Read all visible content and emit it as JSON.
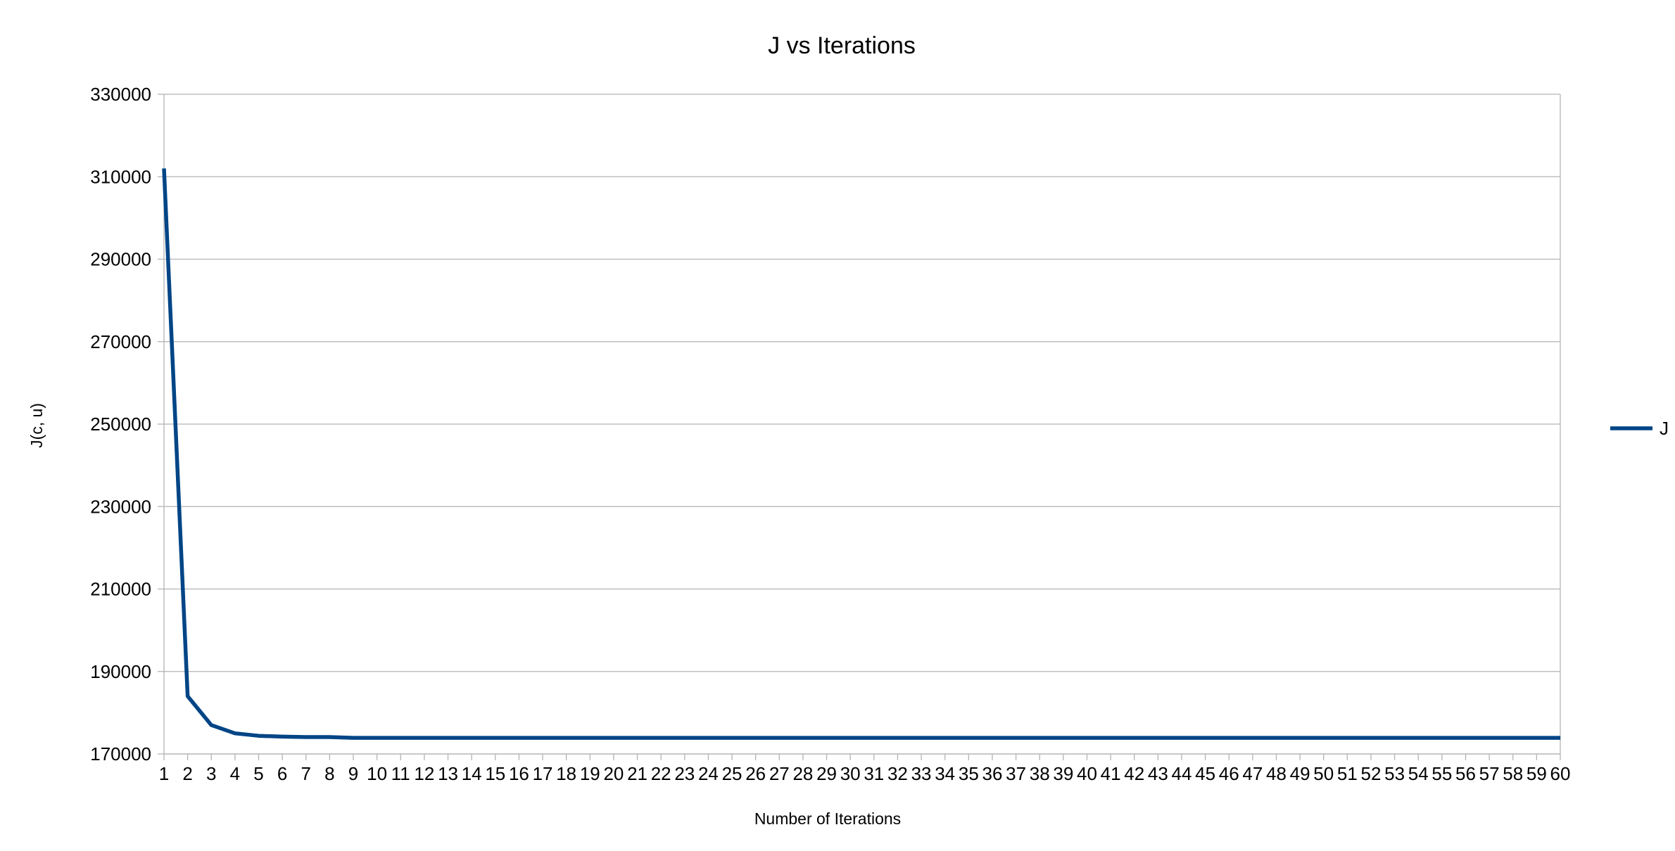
{
  "chart_data": {
    "type": "line",
    "title": "J vs Iterations",
    "xlabel": "Number of Iterations",
    "ylabel": "J(c, u)",
    "x": [
      1,
      2,
      3,
      4,
      5,
      6,
      7,
      8,
      9,
      10,
      11,
      12,
      13,
      14,
      15,
      16,
      17,
      18,
      19,
      20,
      21,
      22,
      23,
      24,
      25,
      26,
      27,
      28,
      29,
      30,
      31,
      32,
      33,
      34,
      35,
      36,
      37,
      38,
      39,
      40,
      41,
      42,
      43,
      44,
      45,
      46,
      47,
      48,
      49,
      50,
      51,
      52,
      53,
      54,
      55,
      56,
      57,
      58,
      59,
      60
    ],
    "y_ticks": [
      170000,
      190000,
      210000,
      230000,
      250000,
      270000,
      290000,
      310000,
      330000
    ],
    "ylim": [
      170000,
      330000
    ],
    "grid": true,
    "legend_position": "right",
    "series": [
      {
        "name": "J",
        "color": "#004586",
        "values": [
          312000,
          184000,
          177000,
          175000,
          174400,
          174200,
          174100,
          174100,
          173900,
          173900,
          173900,
          173900,
          173900,
          173900,
          173900,
          173900,
          173900,
          173900,
          173900,
          173900,
          173900,
          173900,
          173900,
          173900,
          173900,
          173900,
          173900,
          173900,
          173900,
          173900,
          173900,
          173900,
          173900,
          173900,
          173900,
          173900,
          173900,
          173900,
          173900,
          173900,
          173900,
          173900,
          173900,
          173900,
          173900,
          173900,
          173900,
          173900,
          173900,
          173900,
          173900,
          173900,
          173900,
          173900,
          173900,
          173900,
          173900,
          173900,
          173900,
          173900
        ]
      }
    ]
  }
}
